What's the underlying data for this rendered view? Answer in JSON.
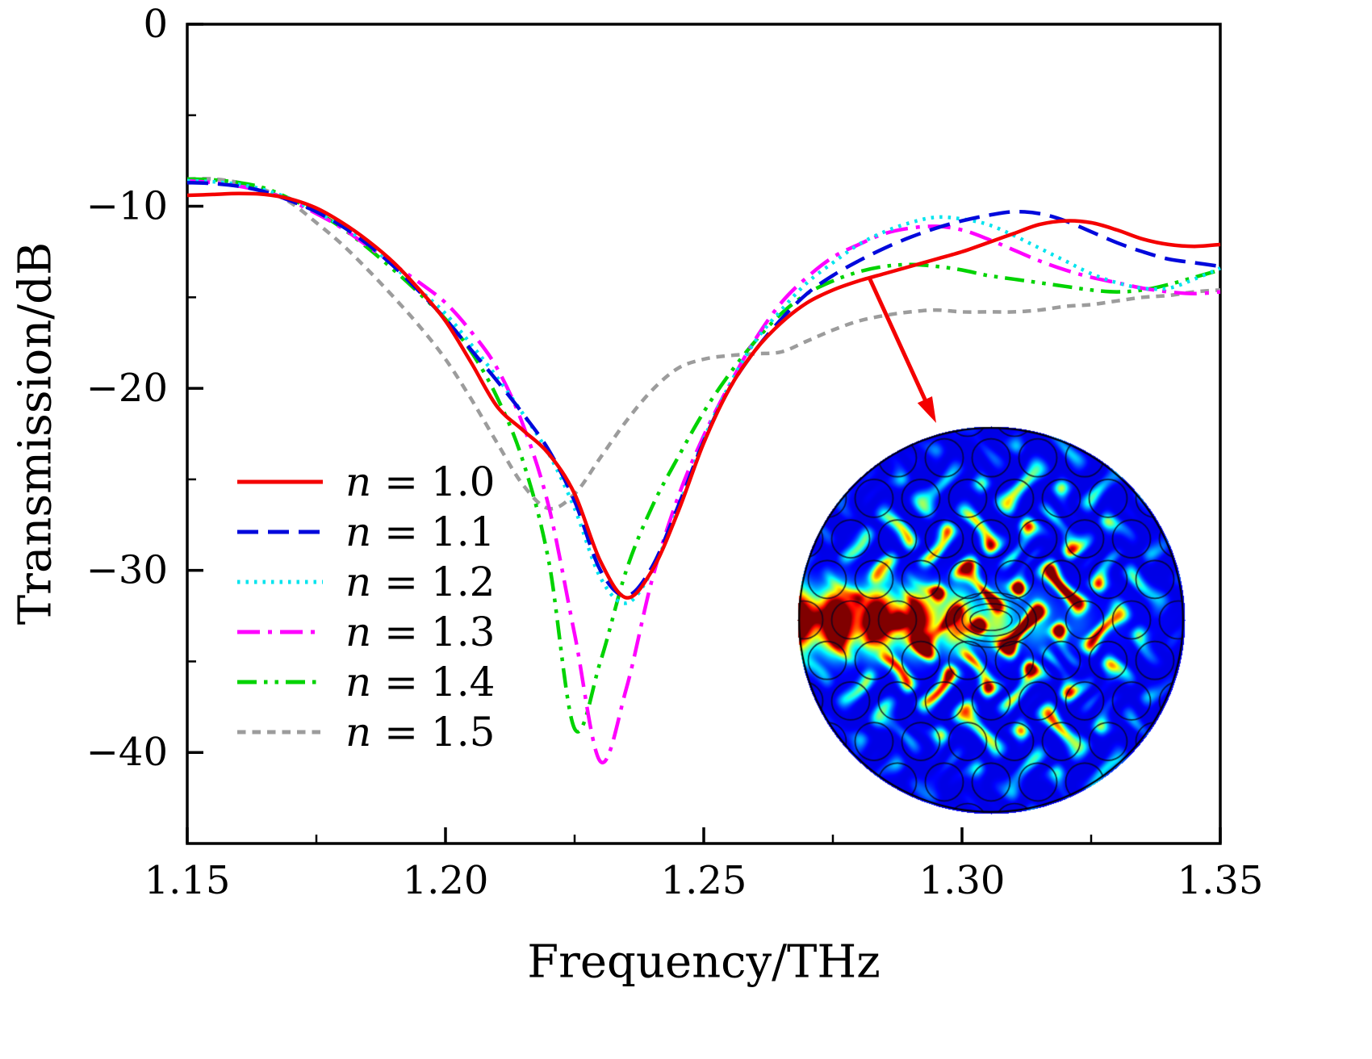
{
  "figure": {
    "background": "#ffffff",
    "arrow": {
      "color": "#f40000",
      "target": "inset"
    },
    "inset": {
      "type": "field-map",
      "colormap": "jet",
      "shape": "circle"
    }
  },
  "chart_data": {
    "type": "line",
    "title": "",
    "xlabel": "Frequency/THz",
    "ylabel": "Transmission/dB",
    "xlim": [
      1.15,
      1.35
    ],
    "ylim": [
      -45,
      0
    ],
    "grid": false,
    "legend_position": "left-middle",
    "x_ticks": [
      1.15,
      1.2,
      1.25,
      1.3,
      1.35
    ],
    "x_tick_labels": [
      "1.15",
      "1.20",
      "1.25",
      "1.30",
      "1.35"
    ],
    "x_minor_ticks": [
      1.175,
      1.225,
      1.275,
      1.325
    ],
    "y_ticks": [
      0,
      -10,
      -20,
      -30,
      -40
    ],
    "y_tick_labels": [
      "0",
      "−10",
      "−20",
      "−30",
      "−40"
    ],
    "y_minor_ticks": [
      -5,
      -15,
      -25,
      -35
    ],
    "x": [
      1.15,
      1.155,
      1.16,
      1.165,
      1.17,
      1.175,
      1.18,
      1.185,
      1.19,
      1.195,
      1.2,
      1.205,
      1.21,
      1.215,
      1.22,
      1.225,
      1.23,
      1.235,
      1.24,
      1.245,
      1.25,
      1.255,
      1.26,
      1.265,
      1.27,
      1.275,
      1.28,
      1.285,
      1.29,
      1.295,
      1.3,
      1.305,
      1.31,
      1.315,
      1.32,
      1.325,
      1.33,
      1.335,
      1.34,
      1.345,
      1.35
    ],
    "series": [
      {
        "name": "n = 1.0",
        "label": "n = 1.0",
        "label_var": "n",
        "label_rest": " = 1.0",
        "color": "#f40000",
        "linestyle": "solid",
        "values": [
          -9.4,
          -9.35,
          -9.3,
          -9.35,
          -9.6,
          -10.1,
          -10.9,
          -11.9,
          -13.1,
          -14.6,
          -16.3,
          -18.6,
          -21.0,
          -22.3,
          -23.6,
          -25.8,
          -29.5,
          -31.5,
          -30.0,
          -26.8,
          -23.0,
          -20.0,
          -17.9,
          -16.4,
          -15.3,
          -14.6,
          -14.1,
          -13.7,
          -13.3,
          -12.9,
          -12.5,
          -12.0,
          -11.5,
          -11.0,
          -10.8,
          -10.9,
          -11.3,
          -11.8,
          -12.1,
          -12.2,
          -12.1
        ]
      },
      {
        "name": "n = 1.1",
        "label": "n = 1.1",
        "label_var": "n",
        "label_rest": " = 1.1",
        "color": "#0008dc",
        "linestyle": "dashed",
        "values": [
          -8.7,
          -8.75,
          -8.9,
          -9.2,
          -9.7,
          -10.3,
          -11.1,
          -12.1,
          -13.3,
          -14.7,
          -16.2,
          -17.9,
          -19.6,
          -21.4,
          -23.4,
          -26.2,
          -30.0,
          -31.4,
          -29.8,
          -26.5,
          -22.9,
          -20.0,
          -17.9,
          -16.2,
          -14.8,
          -13.8,
          -13.0,
          -12.3,
          -11.7,
          -11.2,
          -10.8,
          -10.5,
          -10.3,
          -10.4,
          -10.8,
          -11.4,
          -12.0,
          -12.5,
          -12.9,
          -13.1,
          -13.3
        ]
      },
      {
        "name": "n = 1.2",
        "label": "n = 1.2",
        "label_var": "n",
        "label_rest": " = 1.2",
        "color": "#00e4ee",
        "linestyle": "dotted",
        "values": [
          -8.6,
          -8.65,
          -8.8,
          -9.1,
          -9.6,
          -10.3,
          -11.1,
          -12.1,
          -13.3,
          -14.6,
          -15.9,
          -17.6,
          -19.4,
          -21.4,
          -23.6,
          -26.6,
          -30.4,
          -31.8,
          -30.0,
          -26.6,
          -22.8,
          -19.8,
          -17.4,
          -15.7,
          -14.2,
          -13.1,
          -12.1,
          -11.4,
          -10.9,
          -10.6,
          -10.7,
          -11.0,
          -11.6,
          -12.3,
          -13.0,
          -13.7,
          -14.2,
          -14.5,
          -14.5,
          -14.0,
          -13.4
        ]
      },
      {
        "name": "n = 1.3",
        "label": "n = 1.3",
        "label_var": "n",
        "label_rest": " = 1.3",
        "color": "#ff00ff",
        "linestyle": "dash-dot",
        "values": [
          -8.6,
          -8.7,
          -8.9,
          -9.2,
          -9.7,
          -10.4,
          -11.2,
          -12.2,
          -13.2,
          -14.2,
          -15.3,
          -16.9,
          -18.9,
          -22.0,
          -26.5,
          -33.5,
          -40.5,
          -36.5,
          -30.5,
          -26.0,
          -22.6,
          -19.8,
          -17.3,
          -15.3,
          -13.9,
          -12.8,
          -12.1,
          -11.5,
          -11.2,
          -11.1,
          -11.3,
          -11.8,
          -12.4,
          -13.0,
          -13.5,
          -13.9,
          -14.2,
          -14.5,
          -14.7,
          -14.8,
          -14.7
        ]
      },
      {
        "name": "n = 1.4",
        "label": "n = 1.4",
        "label_var": "n",
        "label_rest": " = 1.4",
        "color": "#00d300",
        "linestyle": "dash-dot-dot",
        "values": [
          -8.5,
          -8.55,
          -8.7,
          -9.0,
          -9.6,
          -10.3,
          -11.2,
          -12.3,
          -13.5,
          -14.8,
          -16.2,
          -18.0,
          -20.5,
          -24.0,
          -29.5,
          -38.7,
          -35.0,
          -30.0,
          -26.5,
          -23.8,
          -21.3,
          -19.2,
          -17.4,
          -15.9,
          -14.8,
          -14.1,
          -13.6,
          -13.3,
          -13.2,
          -13.3,
          -13.5,
          -13.8,
          -14.0,
          -14.2,
          -14.4,
          -14.6,
          -14.7,
          -14.6,
          -14.3,
          -13.9,
          -13.5
        ]
      },
      {
        "name": "n = 1.5",
        "label": "n = 1.5",
        "label_var": "n",
        "label_rest": " = 1.5",
        "color": "#9c9c9c",
        "linestyle": "short-dash",
        "values": [
          -8.5,
          -8.5,
          -8.7,
          -9.1,
          -9.8,
          -10.9,
          -12.1,
          -13.5,
          -15.0,
          -16.6,
          -18.4,
          -20.6,
          -23.0,
          -25.3,
          -26.6,
          -25.8,
          -23.8,
          -21.8,
          -20.1,
          -18.9,
          -18.4,
          -18.2,
          -18.1,
          -18.0,
          -17.4,
          -16.8,
          -16.3,
          -16.0,
          -15.8,
          -15.7,
          -15.8,
          -15.8,
          -15.8,
          -15.7,
          -15.5,
          -15.4,
          -15.2,
          -15.0,
          -14.9,
          -14.7,
          -14.6
        ]
      }
    ]
  }
}
